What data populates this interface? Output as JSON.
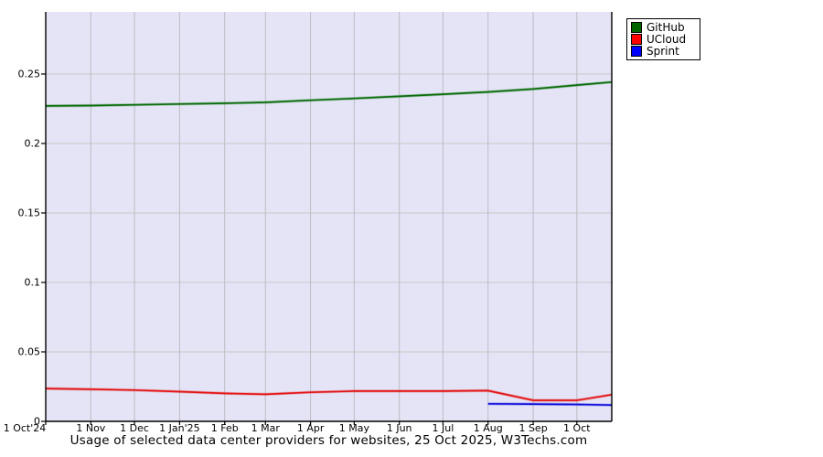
{
  "chart_data": {
    "type": "line",
    "title": "Usage of selected data center providers for websites, 25 Oct 2025, W3Techs.com",
    "grid": true,
    "legend_position": "top-right",
    "plot_bg": "#e4e4f6",
    "h_grid_color": "#c8c8c8",
    "v_grid_color": "#bcbcc4",
    "axis_color": "#000000",
    "x_axis": {
      "tick_labels": [
        "1 Oct'24",
        "1 Nov",
        "1 Dec",
        "1 Jan'25",
        "1 Feb",
        "1 Mar",
        "1 Apr",
        "1 May",
        "1 Jun",
        "1 Jul",
        "1 Aug",
        "1 Sep",
        "1 Oct"
      ],
      "tick_day_offsets": [
        0,
        31,
        61,
        92,
        123,
        151,
        182,
        212,
        243,
        273,
        304,
        335,
        365
      ],
      "total_days": 389,
      "end_date_label": "25 Oct 2025"
    },
    "y_axis": {
      "tick_values": [
        0,
        0.05,
        0.1,
        0.15,
        0.2,
        0.25
      ],
      "tick_labels": [
        "0",
        "0.05",
        "0.1",
        "0.15",
        "0.2",
        "0.25"
      ],
      "ylim": [
        0,
        0.2947
      ]
    },
    "series": [
      {
        "name": "GitHub",
        "swatch_color": "#006400",
        "line_color": "#0a6e0a",
        "day_offsets": [
          0,
          31,
          61,
          92,
          123,
          151,
          182,
          212,
          243,
          273,
          304,
          335,
          365,
          389
        ],
        "values": [
          0.227,
          0.2273,
          0.2278,
          0.2284,
          0.2289,
          0.2296,
          0.2311,
          0.2324,
          0.2339,
          0.2354,
          0.2371,
          0.2392,
          0.242,
          0.2442
        ]
      },
      {
        "name": "UCloud",
        "swatch_color": "#ff0000",
        "line_color": "#e41414",
        "day_offsets": [
          0,
          31,
          61,
          92,
          123,
          151,
          182,
          212,
          243,
          273,
          304,
          335,
          365,
          389
        ],
        "values": [
          0.0236,
          0.0231,
          0.0225,
          0.0214,
          0.0201,
          0.0195,
          0.0209,
          0.0218,
          0.0218,
          0.0218,
          0.0221,
          0.0151,
          0.0151,
          0.0192
        ]
      },
      {
        "name": "Sprint",
        "swatch_color": "#0000ff",
        "line_color": "#1414dd",
        "day_offsets": [
          304,
          335,
          365,
          389
        ],
        "values": [
          0.0126,
          0.0124,
          0.0122,
          0.0117
        ]
      }
    ]
  }
}
